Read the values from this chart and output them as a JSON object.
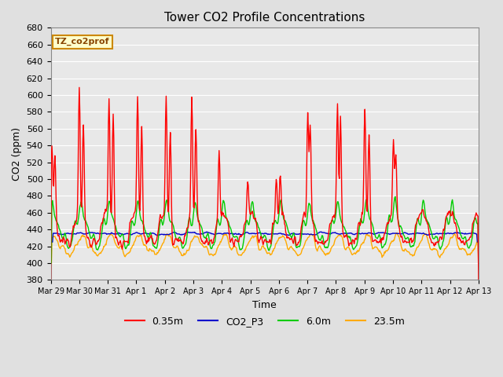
{
  "title": "Tower CO2 Profile Concentrations",
  "xlabel": "Time",
  "ylabel": "CO2 (ppm)",
  "ylim": [
    380,
    680
  ],
  "background_color": "#e0e0e0",
  "plot_bg_color": "#e8e8e8",
  "grid_color": "white",
  "legend_label": "TZ_co2prof",
  "legend_box_color": "#ffffcc",
  "legend_box_edge": "#cc8800",
  "series": {
    "0.35m": {
      "color": "#ff0000",
      "lw": 1.0
    },
    "CO2_P3": {
      "color": "#0000cc",
      "lw": 1.0
    },
    "6.0m": {
      "color": "#00cc00",
      "lw": 1.0
    },
    "23.5m": {
      "color": "#ffaa00",
      "lw": 1.0
    }
  },
  "xtick_labels": [
    "Mar 29",
    "Mar 30",
    "Mar 31",
    "Apr 1",
    "Apr 2",
    "Apr 3",
    "Apr 4",
    "Apr 5",
    "Apr 6",
    "Apr 7",
    "Apr 8",
    "Apr 9",
    "Apr 10",
    "Apr 11",
    "Apr 12",
    "Apr 13"
  ],
  "figsize": [
    6.4,
    4.8
  ],
  "dpi": 100
}
